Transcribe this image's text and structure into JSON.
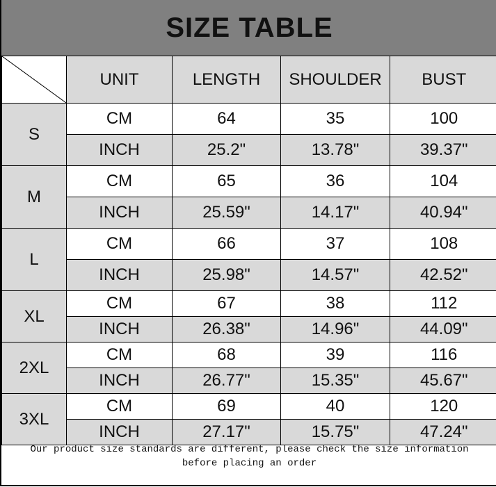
{
  "title": "SIZE TABLE",
  "headers": [
    "UNIT",
    "LENGTH",
    "SHOULDER",
    "BUST"
  ],
  "sizes": [
    {
      "size": "S",
      "cm": [
        "CM",
        "64",
        "35",
        "100"
      ],
      "inch": [
        "INCH",
        "25.2\"",
        "13.78\"",
        "39.37\""
      ]
    },
    {
      "size": "M",
      "cm": [
        "CM",
        "65",
        "36",
        "104"
      ],
      "inch": [
        "INCH",
        "25.59\"",
        "14.17\"",
        "40.94\""
      ]
    },
    {
      "size": "L",
      "cm": [
        "CM",
        "66",
        "37",
        "108"
      ],
      "inch": [
        "INCH",
        "25.98\"",
        "14.57\"",
        "42.52\""
      ]
    },
    {
      "size": "XL",
      "cm": [
        "CM",
        "67",
        "38",
        "112"
      ],
      "inch": [
        "INCH",
        "26.38\"",
        "14.96\"",
        "44.09\""
      ]
    },
    {
      "size": "2XL",
      "cm": [
        "CM",
        "68",
        "39",
        "116"
      ],
      "inch": [
        "INCH",
        "26.77\"",
        "15.35\"",
        "45.67\""
      ]
    },
    {
      "size": "3XL",
      "cm": [
        "CM",
        "69",
        "40",
        "120"
      ],
      "inch": [
        "INCH",
        "27.17\"",
        "15.75\"",
        "47.24\""
      ]
    }
  ],
  "note_line1": "Our product size standards are different, please check the size information",
  "note_line2": "before placing an order",
  "colors": {
    "title_bg": "#808080",
    "cell_gray": "#d9d9d9"
  }
}
